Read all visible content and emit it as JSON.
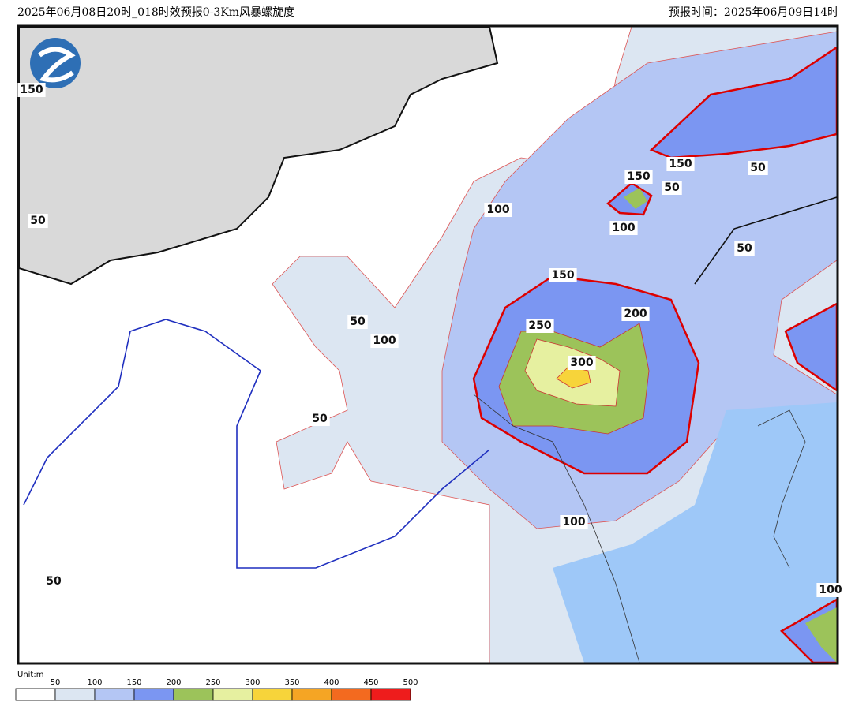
{
  "header": {
    "title": "2025年06月08日20时_018时效预报0-3Km风暴螺旋度",
    "forecast_time": "预报时间：2025年06月09日14时"
  },
  "contour_labels": [
    "150",
    "50",
    "100",
    "150",
    "150",
    "50",
    "50",
    "100",
    "50",
    "150",
    "200",
    "250",
    "50",
    "100",
    "300",
    "50",
    "100",
    "50",
    "100"
  ],
  "legend": {
    "unit": "Unit:m",
    "ticks": [
      50,
      100,
      150,
      200,
      250,
      300,
      350,
      400,
      450,
      500
    ],
    "colors": [
      "#ffffff",
      "#dce6f2",
      "#b4c6f4",
      "#7b96f2",
      "#9cc35a",
      "#e6f0a0",
      "#f7d43a",
      "#f5a524",
      "#f36a1f",
      "#ee1c1c"
    ]
  }
}
